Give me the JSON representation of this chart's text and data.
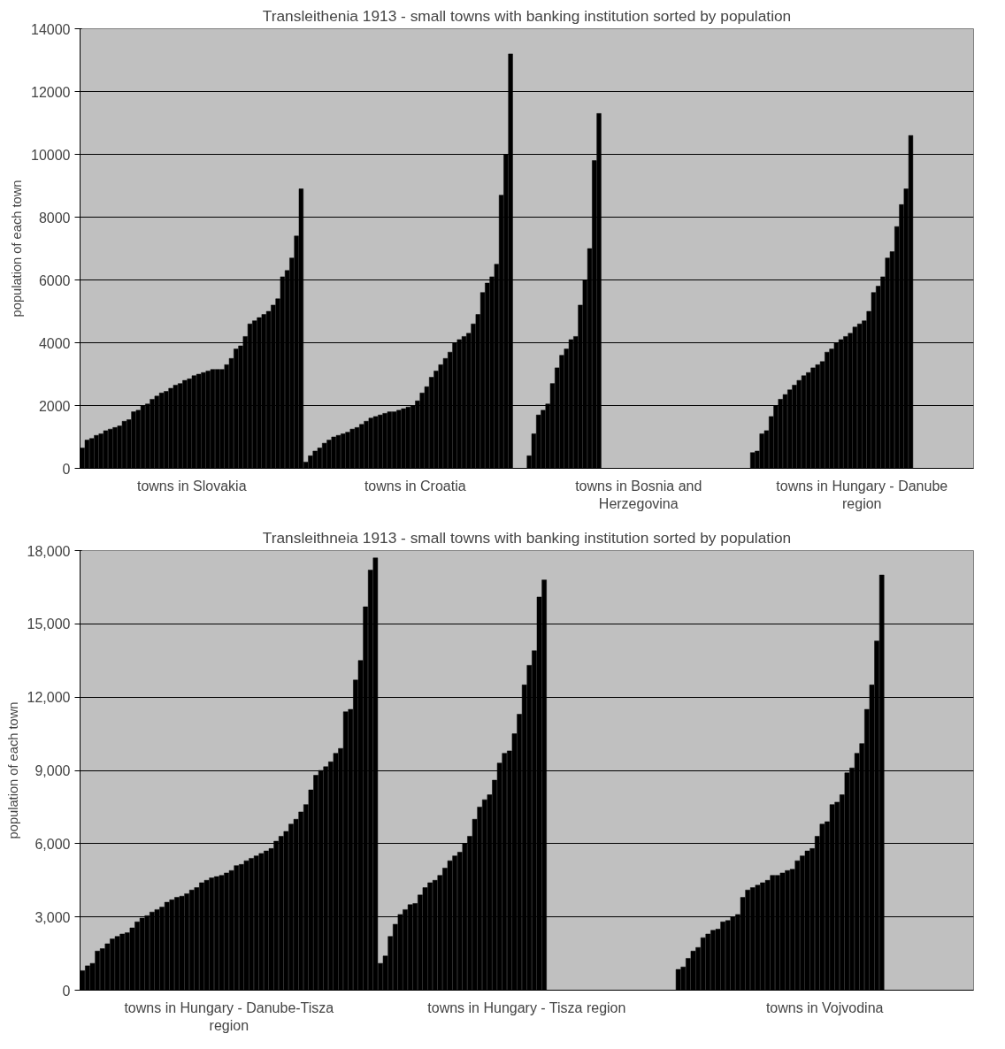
{
  "chart_data": [
    {
      "type": "bar",
      "title": "Transleithenia 1913 - small towns with banking institution sorted by population",
      "ylabel": "population of each town",
      "categories": [
        "towns in Slovakia",
        "towns in Croatia",
        "towns in Bosnia and Herzegovina",
        "towns in Hungary - Danube region"
      ],
      "ylim": [
        0,
        14000
      ],
      "yticks": [
        0,
        2000,
        4000,
        6000,
        8000,
        10000,
        12000,
        14000
      ],
      "grid": "y",
      "series": [
        {
          "color": "#000000",
          "values": [
            650,
            200,
            400,
            500
          ]
        },
        {
          "color": "#000000",
          "values": [
            900,
            400,
            1100,
            550
          ]
        },
        {
          "color": "#000000",
          "values": [
            950,
            550,
            1700,
            1100
          ]
        },
        {
          "color": "#000000",
          "values": [
            1050,
            650,
            1850,
            1200
          ]
        },
        {
          "color": "#000000",
          "values": [
            1100,
            800,
            2050,
            1650
          ]
        },
        {
          "color": "#000000",
          "values": [
            1200,
            900,
            2700,
            2000
          ]
        },
        {
          "color": "#000000",
          "values": [
            1250,
            1000,
            3200,
            2200
          ]
        },
        {
          "color": "#000000",
          "values": [
            1300,
            1050,
            3600,
            2350
          ]
        },
        {
          "color": "#000000",
          "values": [
            1350,
            1100,
            3800,
            2500
          ]
        },
        {
          "color": "#000000",
          "values": [
            1500,
            1150,
            4100,
            2650
          ]
        },
        {
          "color": "#000000",
          "values": [
            1550,
            1250,
            4200,
            2800
          ]
        },
        {
          "color": "#000000",
          "values": [
            1800,
            1300,
            5200,
            2950
          ]
        },
        {
          "color": "#000000",
          "values": [
            1850,
            1400,
            6000,
            3050
          ]
        },
        {
          "color": "#000000",
          "values": [
            2000,
            1500,
            7000,
            3200
          ]
        },
        {
          "color": "#000000",
          "values": [
            2050,
            1600,
            9800,
            3300
          ]
        },
        {
          "color": "#000000",
          "values": [
            2200,
            1650,
            11300,
            3400
          ]
        },
        {
          "color": "#000000",
          "values": [
            2300,
            1700,
            null,
            3700
          ]
        },
        {
          "color": "#000000",
          "values": [
            2400,
            1750,
            null,
            3800
          ]
        },
        {
          "color": "#000000",
          "values": [
            2450,
            1800,
            null,
            4000
          ]
        },
        {
          "color": "#000000",
          "values": [
            2550,
            1800,
            null,
            4100
          ]
        },
        {
          "color": "#000000",
          "values": [
            2650,
            1850,
            null,
            4200
          ]
        },
        {
          "color": "#000000",
          "values": [
            2700,
            1900,
            null,
            4300
          ]
        },
        {
          "color": "#000000",
          "values": [
            2800,
            1950,
            null,
            4500
          ]
        },
        {
          "color": "#000000",
          "values": [
            2850,
            2000,
            null,
            4600
          ]
        },
        {
          "color": "#000000",
          "values": [
            2950,
            2150,
            null,
            4700
          ]
        },
        {
          "color": "#000000",
          "values": [
            3000,
            2400,
            null,
            5000
          ]
        },
        {
          "color": "#000000",
          "values": [
            3050,
            2600,
            null,
            5600
          ]
        },
        {
          "color": "#000000",
          "values": [
            3100,
            2900,
            null,
            5800
          ]
        },
        {
          "color": "#000000",
          "values": [
            3150,
            3100,
            null,
            6100
          ]
        },
        {
          "color": "#000000",
          "values": [
            3150,
            3300,
            null,
            6700
          ]
        },
        {
          "color": "#000000",
          "values": [
            3150,
            3500,
            null,
            6900
          ]
        },
        {
          "color": "#000000",
          "values": [
            3300,
            3700,
            null,
            7700
          ]
        },
        {
          "color": "#000000",
          "values": [
            3500,
            4000,
            null,
            8400
          ]
        },
        {
          "color": "#000000",
          "values": [
            3800,
            4100,
            null,
            8900
          ]
        },
        {
          "color": "#000000",
          "values": [
            3900,
            4200,
            null,
            10600
          ]
        },
        {
          "color": "#000000",
          "values": [
            4200,
            4300,
            null,
            null
          ]
        },
        {
          "color": "#000000",
          "values": [
            4600,
            4600,
            null,
            null
          ]
        },
        {
          "color": "#000000",
          "values": [
            4700,
            4900,
            null,
            null
          ]
        },
        {
          "color": "#000000",
          "values": [
            4800,
            5600,
            null,
            null
          ]
        },
        {
          "color": "#000000",
          "values": [
            4900,
            5900,
            null,
            null
          ]
        },
        {
          "color": "#000000",
          "values": [
            5000,
            6100,
            null,
            null
          ]
        },
        {
          "color": "#000000",
          "values": [
            5200,
            6500,
            null,
            null
          ]
        },
        {
          "color": "#000000",
          "values": [
            5400,
            8700,
            null,
            null
          ]
        },
        {
          "color": "#000000",
          "values": [
            6100,
            10000,
            null,
            null
          ]
        },
        {
          "color": "#000000",
          "values": [
            6300,
            13200,
            null,
            null
          ]
        },
        {
          "color": "#000000",
          "values": [
            6700,
            null,
            null,
            null
          ]
        },
        {
          "color": "#000000",
          "values": [
            7400,
            null,
            null,
            null
          ]
        },
        {
          "color": "#000000",
          "values": [
            8900,
            null,
            null,
            null
          ]
        }
      ]
    },
    {
      "type": "bar",
      "title": "Transleithneia 1913 - small towns with banking institution sorted by population",
      "ylabel": "population of each town",
      "categories": [
        "towns in Hungary - Danube-Tisza region",
        "towns in Hungary - Tisza region",
        "towns in Vojvodina"
      ],
      "ylim": [
        0,
        18000
      ],
      "yticks": [
        0,
        {
          "value": 3000,
          "label": "3,000"
        },
        {
          "value": 6000,
          "label": "6,000"
        },
        {
          "value": 9000,
          "label": "9,000"
        },
        {
          "value": 12000,
          "label": "12,000"
        },
        {
          "value": 15000,
          "label": "15,000"
        },
        {
          "value": 18000,
          "label": "18,000"
        }
      ],
      "grid": "y",
      "series": [
        {
          "color": "#000000",
          "values": [
            800,
            1100,
            850
          ]
        },
        {
          "color": "#000000",
          "values": [
            1000,
            1400,
            950
          ]
        },
        {
          "color": "#000000",
          "values": [
            1100,
            2200,
            1300
          ]
        },
        {
          "color": "#000000",
          "values": [
            1600,
            2700,
            1600
          ]
        },
        {
          "color": "#000000",
          "values": [
            1700,
            3100,
            1750
          ]
        },
        {
          "color": "#000000",
          "values": [
            1900,
            3300,
            2150
          ]
        },
        {
          "color": "#000000",
          "values": [
            2100,
            3500,
            2300
          ]
        },
        {
          "color": "#000000",
          "values": [
            2200,
            3550,
            2450
          ]
        },
        {
          "color": "#000000",
          "values": [
            2300,
            3900,
            2500
          ]
        },
        {
          "color": "#000000",
          "values": [
            2350,
            4200,
            2800
          ]
        },
        {
          "color": "#000000",
          "values": [
            2550,
            4400,
            2850
          ]
        },
        {
          "color": "#000000",
          "values": [
            2800,
            4500,
            3000
          ]
        },
        {
          "color": "#000000",
          "values": [
            2950,
            4700,
            3100
          ]
        },
        {
          "color": "#000000",
          "values": [
            3050,
            5000,
            3800
          ]
        },
        {
          "color": "#000000",
          "values": [
            3200,
            5300,
            4100
          ]
        },
        {
          "color": "#000000",
          "values": [
            3300,
            5500,
            4200
          ]
        },
        {
          "color": "#000000",
          "values": [
            3400,
            5650,
            4300
          ]
        },
        {
          "color": "#000000",
          "values": [
            3600,
            6000,
            4400
          ]
        },
        {
          "color": "#000000",
          "values": [
            3700,
            6300,
            4500
          ]
        },
        {
          "color": "#000000",
          "values": [
            3800,
            7000,
            4700
          ]
        },
        {
          "color": "#000000",
          "values": [
            3850,
            7500,
            4700
          ]
        },
        {
          "color": "#000000",
          "values": [
            3950,
            7800,
            4800
          ]
        },
        {
          "color": "#000000",
          "values": [
            4100,
            8000,
            4900
          ]
        },
        {
          "color": "#000000",
          "values": [
            4200,
            8600,
            4950
          ]
        },
        {
          "color": "#000000",
          "values": [
            4400,
            9300,
            5300
          ]
        },
        {
          "color": "#000000",
          "values": [
            4500,
            9700,
            5500
          ]
        },
        {
          "color": "#000000",
          "values": [
            4600,
            9800,
            5700
          ]
        },
        {
          "color": "#000000",
          "values": [
            4650,
            10500,
            5800
          ]
        },
        {
          "color": "#000000",
          "values": [
            4700,
            11300,
            6300
          ]
        },
        {
          "color": "#000000",
          "values": [
            4800,
            12500,
            6800
          ]
        },
        {
          "color": "#000000",
          "values": [
            4900,
            13300,
            6900
          ]
        },
        {
          "color": "#000000",
          "values": [
            5100,
            13900,
            7600
          ]
        },
        {
          "color": "#000000",
          "values": [
            5150,
            16100,
            7700
          ]
        },
        {
          "color": "#000000",
          "values": [
            5300,
            16800,
            8000
          ]
        },
        {
          "color": "#000000",
          "values": [
            5400,
            null,
            8900
          ]
        },
        {
          "color": "#000000",
          "values": [
            5500,
            null,
            9100
          ]
        },
        {
          "color": "#000000",
          "values": [
            5600,
            null,
            9700
          ]
        },
        {
          "color": "#000000",
          "values": [
            5700,
            null,
            10100
          ]
        },
        {
          "color": "#000000",
          "values": [
            5800,
            null,
            11500
          ]
        },
        {
          "color": "#000000",
          "values": [
            6100,
            null,
            12500
          ]
        },
        {
          "color": "#000000",
          "values": [
            6300,
            null,
            14300
          ]
        },
        {
          "color": "#000000",
          "values": [
            6500,
            null,
            17000
          ]
        },
        {
          "color": "#000000",
          "values": [
            6800,
            null,
            null
          ]
        },
        {
          "color": "#000000",
          "values": [
            7000,
            null,
            null
          ]
        },
        {
          "color": "#000000",
          "values": [
            7300,
            null,
            null
          ]
        },
        {
          "color": "#000000",
          "values": [
            7600,
            null,
            null
          ]
        },
        {
          "color": "#000000",
          "values": [
            8200,
            null,
            null
          ]
        },
        {
          "color": "#000000",
          "values": [
            8800,
            null,
            null
          ]
        },
        {
          "color": "#000000",
          "values": [
            9000,
            null,
            null
          ]
        },
        {
          "color": "#000000",
          "values": [
            9150,
            null,
            null
          ]
        },
        {
          "color": "#000000",
          "values": [
            9350,
            null,
            null
          ]
        },
        {
          "color": "#000000",
          "values": [
            9700,
            null,
            null
          ]
        },
        {
          "color": "#000000",
          "values": [
            9900,
            null,
            null
          ]
        },
        {
          "color": "#000000",
          "values": [
            11400,
            null,
            null
          ]
        },
        {
          "color": "#000000",
          "values": [
            11500,
            null,
            null
          ]
        },
        {
          "color": "#000000",
          "values": [
            12700,
            null,
            null
          ]
        },
        {
          "color": "#000000",
          "values": [
            13500,
            null,
            null
          ]
        },
        {
          "color": "#000000",
          "values": [
            15700,
            null,
            null
          ]
        },
        {
          "color": "#000000",
          "values": [
            17200,
            null,
            null
          ]
        },
        {
          "color": "#000000",
          "values": [
            17700,
            null,
            null
          ]
        }
      ]
    }
  ]
}
